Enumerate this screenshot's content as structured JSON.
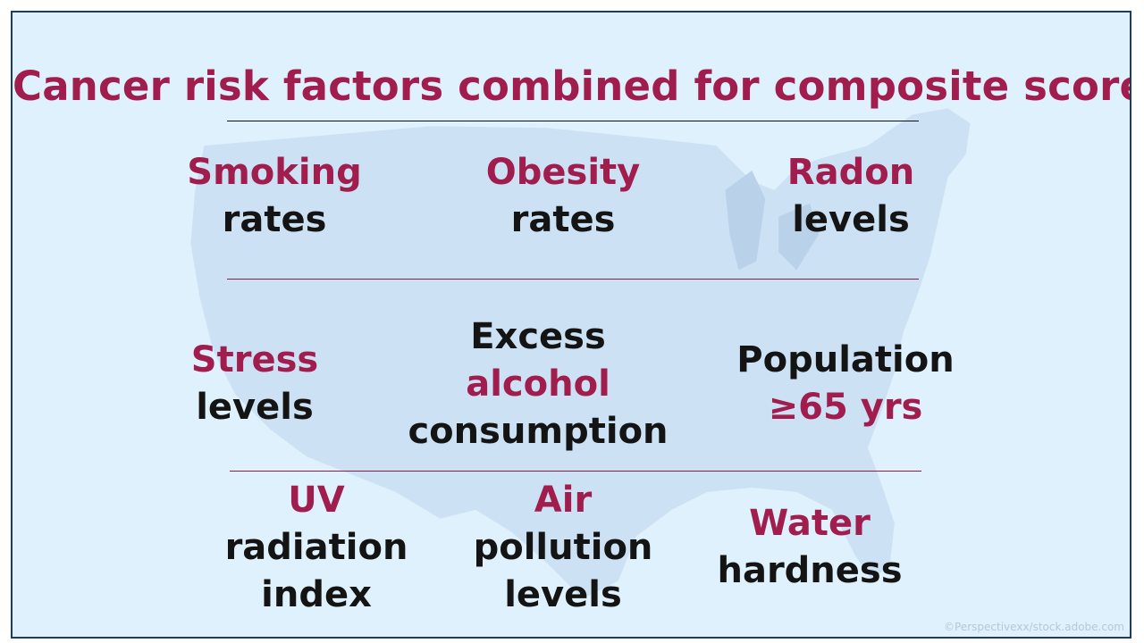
{
  "title": "Cancer risk factors combined for composite score",
  "colors": {
    "accent": "#a01d4e",
    "text": "#141414",
    "background": "#dff1fc",
    "map": "#c9dff2",
    "border": "#1f3e55"
  },
  "background_image": "us-map-silhouette",
  "factors": [
    {
      "line1": "Smoking",
      "line2": "rates"
    },
    {
      "line1": "Obesity",
      "line2": "rates"
    },
    {
      "line1": "Radon",
      "line2": "levels"
    },
    {
      "line1": "Stress",
      "line2": "levels"
    },
    {
      "line1": "Excess",
      "line2": "alcohol",
      "line3": "consumption"
    },
    {
      "line1": "Population",
      "line2": "≥65 yrs"
    },
    {
      "line1": "UV",
      "line2": "radiation",
      "line3": "index"
    },
    {
      "line1": "Air",
      "line2": "pollution",
      "line3": "levels"
    },
    {
      "line1": "Water",
      "line2": "hardness"
    }
  ],
  "credit": "©Perspectivexx/stock.adobe.com"
}
